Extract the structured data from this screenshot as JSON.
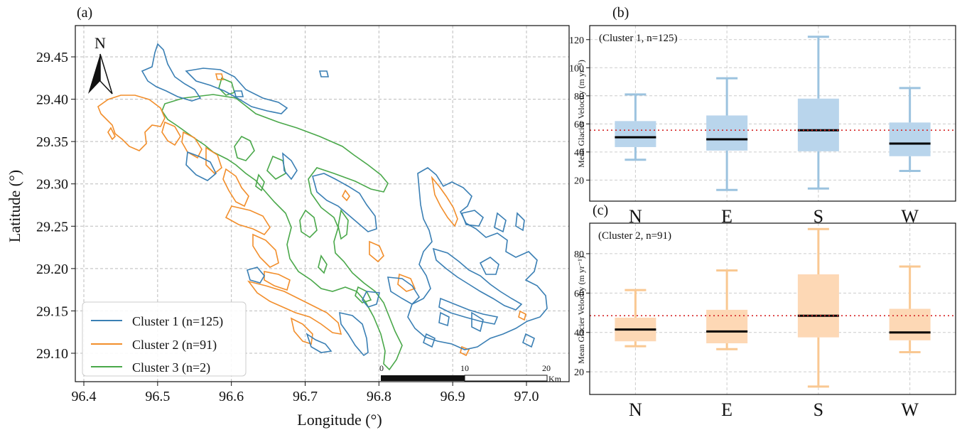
{
  "colors": {
    "cluster1": "#3a7fb4",
    "cluster2": "#f28e2b",
    "cluster3": "#4aa84a",
    "box_blue_fill": "#b9d5ec",
    "box_blue_line": "#9cc3df",
    "box_orange_fill": "#fdd8b5",
    "box_orange_line": "#f9c892",
    "median": "#000000",
    "ref_line": "#d62728",
    "grid": "#bbbbbb"
  },
  "map": {
    "panel_label": "(a)",
    "north_label": "N",
    "xlabel": "Longitude (°)",
    "ylabel": "Latitude (°)",
    "xticks": [
      "96.4",
      "96.5",
      "96.6",
      "96.7",
      "96.8",
      "96.9",
      "97.0"
    ],
    "yticks": [
      "29.45",
      "29.40",
      "29.35",
      "29.30",
      "29.25",
      "29.20",
      "29.15",
      "29.10"
    ],
    "legend": [
      "Cluster 1 (n=125)",
      "Cluster 2 (n=91)",
      "Cluster 3 (n=2)"
    ],
    "scalebar": {
      "labels": [
        "0",
        "10",
        "20"
      ],
      "unit": "Km"
    }
  },
  "chart_data": [
    {
      "type": "box",
      "panel_label": "(b)",
      "annotation": "(Cluster 1, n=125)",
      "ylabel": "Mean Glacier Velocity (m yr⁻¹)",
      "categories": [
        "N",
        "E",
        "S",
        "W"
      ],
      "ylim": [
        5,
        130
      ],
      "yticks": [
        20,
        40,
        60,
        80,
        100,
        120
      ],
      "reference_line": 55.5,
      "boxes": [
        {
          "whisker_low": 34.5,
          "q1": 43.5,
          "median": 50.5,
          "q3": 62,
          "whisker_high": 81
        },
        {
          "whisker_low": 13,
          "q1": 41,
          "median": 49,
          "q3": 66,
          "whisker_high": 92.5
        },
        {
          "whisker_low": 14,
          "q1": 40.5,
          "median": 55.5,
          "q3": 78,
          "whisker_high": 122
        },
        {
          "whisker_low": 26.5,
          "q1": 37,
          "median": 46,
          "q3": 61,
          "whisker_high": 85.5
        }
      ],
      "grid": true
    },
    {
      "type": "box",
      "panel_label": "(c)",
      "annotation": "(Cluster 2, n=91)",
      "ylabel": "Mean Glacier Velocity (m yr⁻¹)",
      "categories": [
        "N",
        "E",
        "S",
        "W"
      ],
      "ylim": [
        8.5,
        95.5
      ],
      "yticks": [
        20,
        40,
        60,
        80
      ],
      "reference_line": 48.5,
      "boxes": [
        {
          "whisker_low": 33,
          "q1": 35.5,
          "median": 41.5,
          "q3": 47.5,
          "whisker_high": 61.5
        },
        {
          "whisker_low": 31.5,
          "q1": 34.5,
          "median": 40.5,
          "q3": 51.5,
          "whisker_high": 71.5
        },
        {
          "whisker_low": 12.5,
          "q1": 37.5,
          "median": 48.5,
          "q3": 69.5,
          "whisker_high": 92.5
        },
        {
          "whisker_low": 30,
          "q1": 36,
          "median": 40,
          "q3": 52,
          "whisker_high": 73.5
        }
      ],
      "grid": true
    }
  ]
}
